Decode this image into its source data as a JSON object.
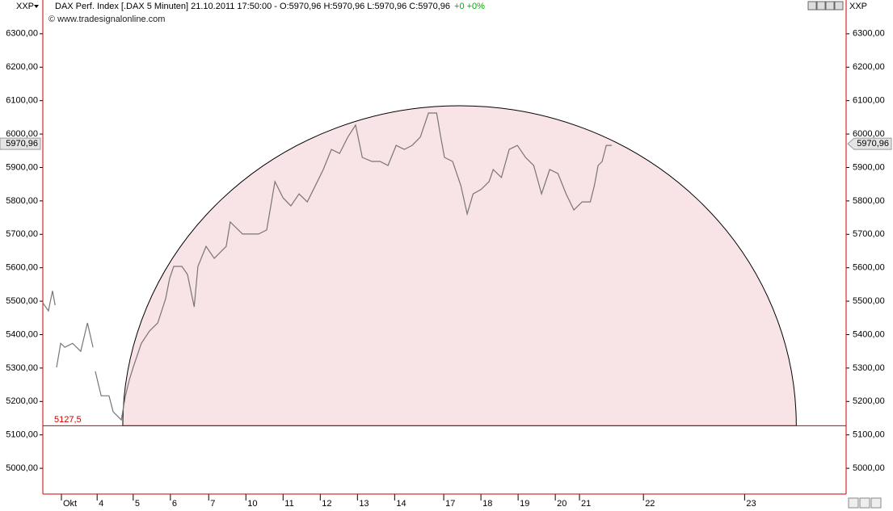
{
  "chart_data": {
    "type": "line",
    "symbol": "XXP",
    "title": "DAX Perf. Index [.DAX  5 Minuten] 21.10.2011 17:50:00 - O:5970,96 H:5970,96 L:5970,96 C:5970,96",
    "change": "+0 +0%",
    "copyright": "© www.tradesignalonline.com",
    "color": "#7a7475",
    "x": [
      0,
      0.15,
      0.26,
      0.33,
      0.35,
      0.37,
      0.48,
      0.59,
      0.8,
      1.02,
      1.2,
      1.35,
      1.38,
      1.41,
      1.57,
      1.78,
      1.89,
      2.11,
      2.22,
      2.33,
      2.43,
      2.65,
      2.87,
      3.09,
      3.3,
      3.41,
      3.52,
      3.74,
      3.89,
      4.07,
      4.17,
      4.39,
      4.61,
      4.93,
      5.04,
      5.37,
      5.8,
      6.02,
      6.24,
      6.46,
      6.67,
      6.89,
      7.11,
      7.33,
      7.54,
      7.76,
      7.98,
      8.2,
      8.41,
      8.59,
      8.85,
      9.07,
      9.28,
      9.5,
      9.72,
      9.93,
      10.15,
      10.37,
      10.59,
      10.7,
      10.8,
      11.02,
      11.24,
      11.41,
      11.57,
      11.78,
      12,
      12.11,
      12.33,
      12.54,
      12.76,
      12.98,
      13.2,
      13.41,
      13.63,
      13.85,
      14.07,
      14.28,
      14.5,
      14.72,
      14.83,
      14.93,
      15.04,
      15.15,
      15.3
    ],
    "values": [
      5495,
      5471,
      5531,
      5488,
      null,
      5302,
      5374,
      5362,
      5374,
      5350,
      5435,
      5362,
      null,
      5290,
      5217,
      5217,
      5169,
      5145,
      5217,
      5266,
      5302,
      5374,
      5411,
      5435,
      5507,
      5568,
      5604,
      5604,
      5580,
      5483,
      5604,
      5664,
      5628,
      5664,
      5737,
      5701,
      5701,
      5713,
      5858,
      5809,
      5785,
      5821,
      5797,
      5846,
      5894,
      5954,
      5942,
      5991,
      6027,
      5930,
      5918,
      5918,
      5906,
      5966,
      5954,
      5966,
      5991,
      6063,
      6063,
      5991,
      5930,
      5918,
      5846,
      5761,
      5821,
      5834,
      5858,
      5894,
      5870,
      5954,
      5966,
      5930,
      5906,
      5821,
      5894,
      5882,
      5821,
      5773,
      5797,
      5797,
      5846,
      5906,
      5918,
      5966,
      5966
    ],
    "xlim": [
      0,
      21.6
    ],
    "xticks": [
      {
        "value": 0.5,
        "label": "Okt"
      },
      {
        "value": 1.46,
        "label": "4"
      },
      {
        "value": 2.43,
        "label": "5"
      },
      {
        "value": 3.43,
        "label": "6"
      },
      {
        "value": 4.46,
        "label": "7"
      },
      {
        "value": 5.46,
        "label": "10"
      },
      {
        "value": 6.46,
        "label": "11"
      },
      {
        "value": 7.46,
        "label": "12"
      },
      {
        "value": 8.46,
        "label": "13"
      },
      {
        "value": 9.46,
        "label": "14"
      },
      {
        "value": 10.78,
        "label": "17"
      },
      {
        "value": 11.78,
        "label": "18"
      },
      {
        "value": 12.78,
        "label": "19"
      },
      {
        "value": 13.78,
        "label": "20"
      },
      {
        "value": 14.43,
        "label": "21"
      },
      {
        "value": 16.15,
        "label": "22"
      },
      {
        "value": 18.87,
        "label": "23"
      }
    ],
    "ylim": [
      4923,
      6360
    ],
    "yticks": [
      {
        "value": 5000,
        "label": "5000,00"
      },
      {
        "value": 5100,
        "label": "5100,00"
      },
      {
        "value": 5200,
        "label": "5200,00"
      },
      {
        "value": 5300,
        "label": "5300,00"
      },
      {
        "value": 5400,
        "label": "5400,00"
      },
      {
        "value": 5500,
        "label": "5500,00"
      },
      {
        "value": 5600,
        "label": "5600,00"
      },
      {
        "value": 5700,
        "label": "5700,00"
      },
      {
        "value": 5800,
        "label": "5800,00"
      },
      {
        "value": 5900,
        "label": "5900,00"
      },
      {
        "value": 6000,
        "label": "6000,00"
      },
      {
        "value": 6100,
        "label": "6100,00"
      },
      {
        "value": 6200,
        "label": "6200,00"
      },
      {
        "value": 6300,
        "label": "6300,00"
      }
    ],
    "last": {
      "value": 5970.96,
      "label": "5970,96"
    },
    "hline": {
      "value": 5127.5,
      "label": "5127,5"
    },
    "arc": {
      "x": [
        2.15,
        20.26
      ],
      "top": 6085
    }
  }
}
